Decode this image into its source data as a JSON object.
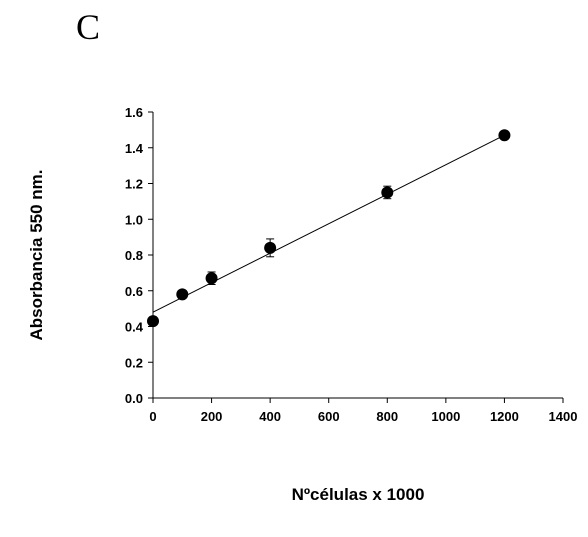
{
  "panel_label": "C",
  "chart_data": {
    "type": "scatter",
    "title": "",
    "xlabel": "Nºcélulas x 1000",
    "ylabel": "Absorbancia 550 nm.",
    "xlim": [
      0,
      1400
    ],
    "ylim": [
      0.0,
      1.6
    ],
    "xticks": [
      0,
      200,
      400,
      600,
      800,
      1000,
      1200,
      1400
    ],
    "xtick_labels": [
      "0",
      "200",
      "400",
      "600",
      "800",
      "1000",
      "1200",
      "1400"
    ],
    "yticks": [
      0.0,
      0.2,
      0.4,
      0.6,
      0.8,
      1.0,
      1.2,
      1.4,
      1.6
    ],
    "ytick_labels": [
      "0.0",
      "0.2",
      "0.4",
      "0.6",
      "0.8",
      "1.0",
      "1.2",
      "1.4",
      "1.6"
    ],
    "grid": false,
    "series": [
      {
        "x": [
          0,
          100,
          200,
          400,
          800,
          1200
        ],
        "y": [
          0.43,
          0.58,
          0.67,
          0.84,
          1.15,
          1.47
        ],
        "error": [
          0.0,
          0.01,
          0.035,
          0.05,
          0.035,
          0.0
        ],
        "marker": "filled-circle",
        "color": "#000000"
      }
    ],
    "fit_line": {
      "x": [
        0,
        1200
      ],
      "y": [
        0.48,
        1.47
      ]
    }
  }
}
